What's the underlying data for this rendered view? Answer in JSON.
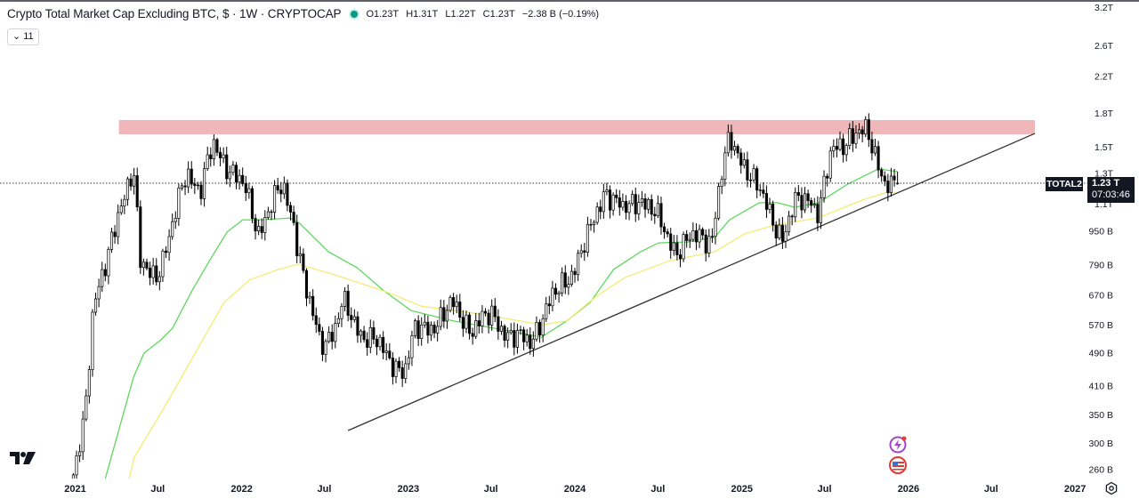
{
  "header": {
    "title": "Crypto Total Market Cap Excluding BTC, $ · 1W · CRYPTOCAP",
    "status_color": "#089981",
    "open": "O1.23T",
    "high": "H1.31T",
    "low": "L1.22T",
    "close": "C1.23T",
    "change": "−2.38 B (−0.19%)",
    "indicators_toggle": "11"
  },
  "price_marker": {
    "symbol": "TOTAL2",
    "price": "1.23 T",
    "countdown": "07:03:46",
    "value_billions": 1230
  },
  "icons": [
    "tradingview-logo",
    "lightning-event-icon",
    "us-flag-event-icon",
    "settings-gear-icon"
  ],
  "chart_data": {
    "type": "candlestick",
    "interval": "1W",
    "y_scale": "log",
    "units": "USD billions",
    "ylim": [
      255,
      3250
    ],
    "candle_colors": {
      "up": "#ffffff",
      "down": "#000000",
      "outline": "#000000"
    },
    "y_ticks": [
      {
        "label": "3.2T",
        "value": 3200
      },
      {
        "label": "2.6T",
        "value": 2600
      },
      {
        "label": "2.2T",
        "value": 2200
      },
      {
        "label": "1.8T",
        "value": 1800
      },
      {
        "label": "1.5T",
        "value": 1500
      },
      {
        "label": "1.3T",
        "value": 1300
      },
      {
        "label": "1.1T",
        "value": 1100
      },
      {
        "label": "950 B",
        "value": 950
      },
      {
        "label": "790 B",
        "value": 790
      },
      {
        "label": "670 B",
        "value": 670
      },
      {
        "label": "570 B",
        "value": 570
      },
      {
        "label": "490 B",
        "value": 490
      },
      {
        "label": "410 B",
        "value": 410
      },
      {
        "label": "350 B",
        "value": 350
      },
      {
        "label": "300 B",
        "value": 300
      },
      {
        "label": "260 B",
        "value": 260
      }
    ],
    "x_ticks": [
      {
        "label": "2021",
        "date": "2021-01-01"
      },
      {
        "label": "Jul",
        "date": "2021-07-01"
      },
      {
        "label": "2022",
        "date": "2022-01-01"
      },
      {
        "label": "Jul",
        "date": "2022-07-01"
      },
      {
        "label": "2023",
        "date": "2023-01-01"
      },
      {
        "label": "Jul",
        "date": "2023-07-01"
      },
      {
        "label": "2024",
        "date": "2024-01-01"
      },
      {
        "label": "Jul",
        "date": "2024-07-01"
      },
      {
        "label": "2025",
        "date": "2025-01-01"
      },
      {
        "label": "Jul",
        "date": "2025-07-01"
      },
      {
        "label": "2026",
        "date": "2026-01-01"
      },
      {
        "label": "Jul",
        "date": "2026-07-01"
      },
      {
        "label": "2027",
        "date": "2027-01-01"
      }
    ],
    "last_candle": {
      "open": 1230,
      "high": 1310,
      "low": 1220,
      "close": 1230
    },
    "price_path": [
      [
        "2020-12-28",
        245
      ],
      [
        "2021-01-21",
        345
      ],
      [
        "2021-02-10",
        645
      ],
      [
        "2021-03-11",
        780
      ],
      [
        "2021-04-09",
        1100
      ],
      [
        "2021-05-09",
        1330
      ],
      [
        "2021-05-24",
        780
      ],
      [
        "2021-06-26",
        750
      ],
      [
        "2021-07-26",
        900
      ],
      [
        "2021-09-03",
        1330
      ],
      [
        "2021-10-02",
        1180
      ],
      [
        "2021-10-31",
        1500
      ],
      [
        "2021-12-09",
        1330
      ],
      [
        "2022-01-08",
        1180
      ],
      [
        "2022-02-06",
        950
      ],
      [
        "2022-02-25",
        1050
      ],
      [
        "2022-04-01",
        1200
      ],
      [
        "2022-04-25",
        1000
      ],
      [
        "2022-05-24",
        670
      ],
      [
        "2022-06-22",
        510
      ],
      [
        "2022-07-22",
        560
      ],
      [
        "2022-08-10",
        640
      ],
      [
        "2022-09-08",
        560
      ],
      [
        "2022-10-17",
        530
      ],
      [
        "2022-11-16",
        470
      ],
      [
        "2022-12-25",
        450
      ],
      [
        "2023-01-13",
        540
      ],
      [
        "2023-03-03",
        580
      ],
      [
        "2023-04-11",
        630
      ],
      [
        "2023-05-20",
        560
      ],
      [
        "2023-07-07",
        600
      ],
      [
        "2023-08-15",
        530
      ],
      [
        "2023-09-23",
        520
      ],
      [
        "2023-10-23",
        600
      ],
      [
        "2023-12-01",
        700
      ],
      [
        "2023-12-30",
        780
      ],
      [
        "2024-01-28",
        900
      ],
      [
        "2024-03-07",
        1200
      ],
      [
        "2024-04-15",
        1050
      ],
      [
        "2024-05-24",
        1150
      ],
      [
        "2024-07-02",
        1000
      ],
      [
        "2024-08-10",
        860
      ],
      [
        "2024-09-28",
        920
      ],
      [
        "2024-10-27",
        920
      ],
      [
        "2024-11-16",
        1260
      ],
      [
        "2024-12-05",
        1550
      ],
      [
        "2025-01-03",
        1400
      ],
      [
        "2025-02-02",
        1200
      ],
      [
        "2025-03-03",
        1050
      ],
      [
        "2025-04-01",
        920
      ],
      [
        "2025-04-30",
        1100
      ],
      [
        "2025-05-30",
        1150
      ],
      [
        "2025-06-18",
        1050
      ],
      [
        "2025-07-17",
        1450
      ],
      [
        "2025-08-25",
        1600
      ],
      [
        "2025-10-03",
        1600
      ],
      [
        "2025-10-23",
        1420
      ],
      [
        "2025-11-11",
        1250
      ],
      [
        "2025-11-25",
        1200
      ],
      [
        "2025-12-08",
        1230
      ]
    ],
    "moving_averages": [
      {
        "color": "#5ed85e",
        "values": [
          [
            "2021-03-07",
            245
          ],
          [
            "2021-05-09",
            429
          ],
          [
            "2021-06-01",
            489
          ],
          [
            "2021-07-06",
            523
          ],
          [
            "2021-08-02",
            559
          ],
          [
            "2021-09-15",
            689
          ],
          [
            "2021-10-26",
            820
          ],
          [
            "2021-11-30",
            943
          ],
          [
            "2022-01-03",
            1008
          ],
          [
            "2022-02-13",
            1008
          ],
          [
            "2022-04-17",
            1018
          ],
          [
            "2022-05-08",
            989
          ],
          [
            "2022-07-10",
            847
          ],
          [
            "2022-09-11",
            777
          ],
          [
            "2022-11-06",
            689
          ],
          [
            "2023-01-07",
            616
          ],
          [
            "2023-04-09",
            582
          ],
          [
            "2023-06-17",
            565
          ],
          [
            "2023-10-20",
            533
          ],
          [
            "2023-12-14",
            582
          ],
          [
            "2024-02-03",
            643
          ],
          [
            "2024-03-26",
            770
          ],
          [
            "2024-05-24",
            847
          ],
          [
            "2024-07-02",
            889
          ],
          [
            "2024-09-05",
            894
          ],
          [
            "2024-11-02",
            916
          ],
          [
            "2024-12-05",
            1008
          ],
          [
            "2025-02-08",
            1106
          ],
          [
            "2025-03-20",
            1106
          ],
          [
            "2025-04-27",
            1079
          ],
          [
            "2025-06-18",
            1106
          ],
          [
            "2025-08-21",
            1224
          ],
          [
            "2025-10-27",
            1329
          ],
          [
            "2025-12-07",
            1310
          ]
        ]
      },
      {
        "color": "#f5ec74",
        "values": [
          [
            "2021-04-17",
            217
          ],
          [
            "2021-05-10",
            277
          ],
          [
            "2021-07-20",
            371
          ],
          [
            "2021-09-29",
            506
          ],
          [
            "2021-11-23",
            643
          ],
          [
            "2022-01-18",
            727
          ],
          [
            "2022-03-16",
            766
          ],
          [
            "2022-05-04",
            792
          ],
          [
            "2022-07-18",
            751
          ],
          [
            "2022-11-20",
            678
          ],
          [
            "2023-01-29",
            631
          ],
          [
            "2023-06-17",
            602
          ],
          [
            "2023-10-20",
            570
          ],
          [
            "2023-12-14",
            582
          ],
          [
            "2024-02-17",
            665
          ],
          [
            "2024-04-20",
            737
          ],
          [
            "2024-07-26",
            807
          ],
          [
            "2024-11-02",
            847
          ],
          [
            "2025-01-07",
            934
          ],
          [
            "2025-03-14",
            980
          ],
          [
            "2025-06-18",
            1019
          ],
          [
            "2025-09-22",
            1122
          ],
          [
            "2025-11-15",
            1171
          ],
          [
            "2025-12-04",
            1171
          ]
        ]
      }
    ],
    "annotations": {
      "resistance_zone": {
        "from": "2021-04-07",
        "to": "2026-10-05",
        "low": 1604,
        "high": 1733,
        "color": "#efb7b9"
      },
      "trendline": {
        "start": [
          "2022-08-22",
          321
        ],
        "end": [
          "2026-10-05",
          1611
        ],
        "color": "#333333"
      },
      "current_price_line": 1230
    }
  }
}
